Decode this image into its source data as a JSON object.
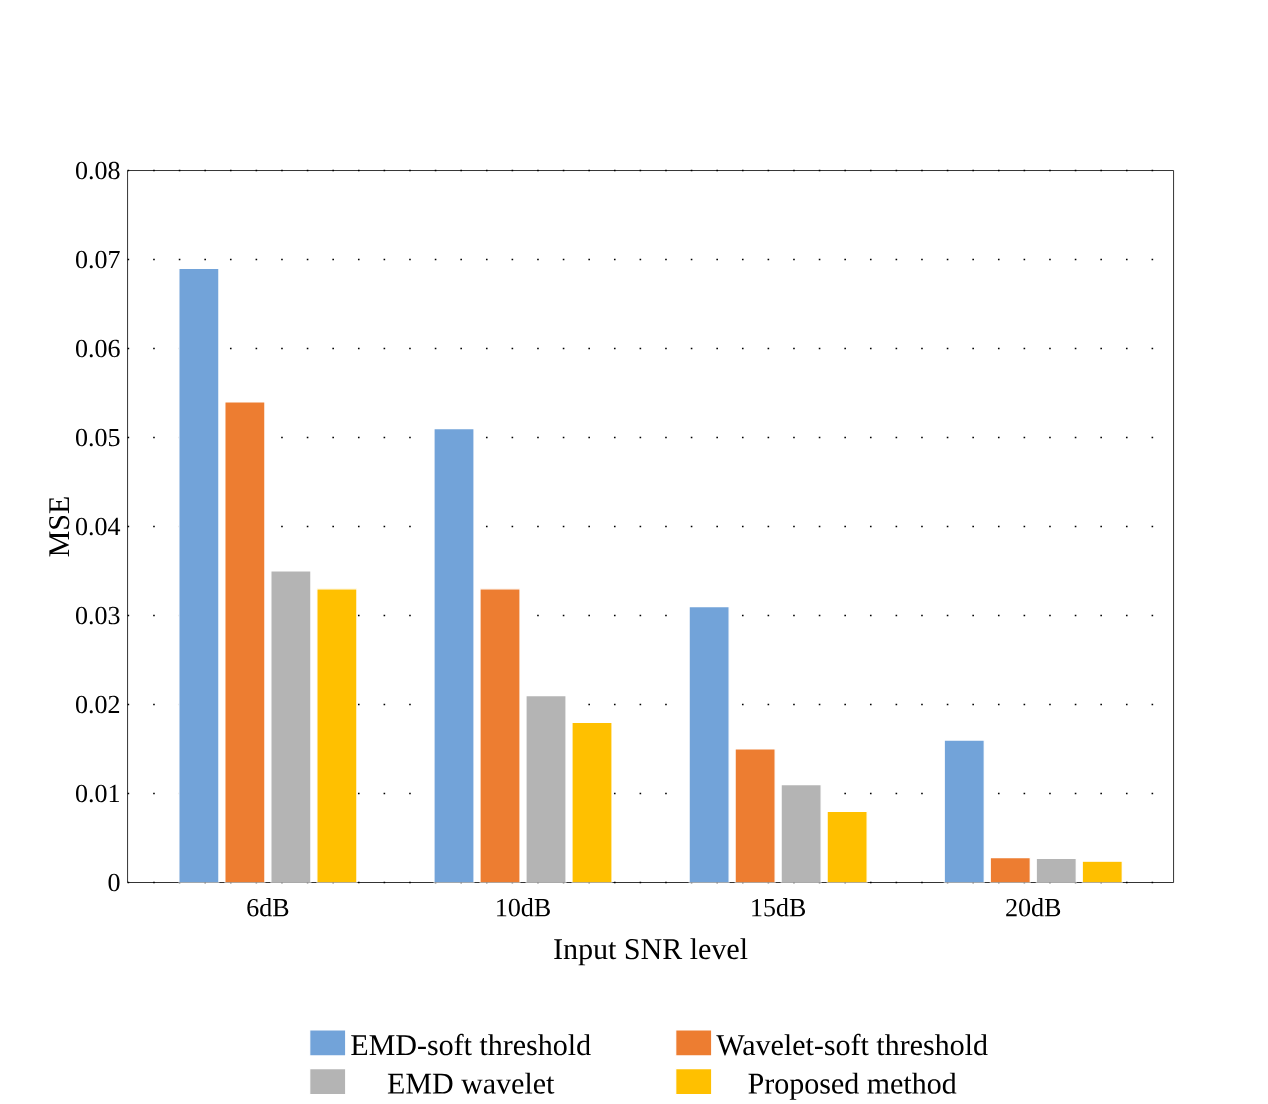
{
  "chart_data": {
    "type": "bar",
    "xlabel": "Input SNR level",
    "ylabel": "MSE",
    "categories": [
      "6dB",
      "10dB",
      "15dB",
      "20dB"
    ],
    "series": [
      {
        "name": "EMD-soft threshold",
        "color": "#72a3d9",
        "values": [
          0.069,
          0.051,
          0.031,
          0.016
        ]
      },
      {
        "name": "Wavelet-soft threshold",
        "color": "#ed7d31",
        "values": [
          0.054,
          0.033,
          0.015,
          0.0028
        ]
      },
      {
        "name": "EMD wavelet",
        "color": "#b4b4b4",
        "values": [
          0.035,
          0.021,
          0.011,
          0.0027
        ]
      },
      {
        "name": "Proposed method",
        "color": "#ffc000",
        "values": [
          0.033,
          0.018,
          0.008,
          0.0024
        ]
      }
    ],
    "ylim": [
      0,
      0.08
    ],
    "yticks": [
      0,
      0.01,
      0.02,
      0.03,
      0.04,
      0.05,
      0.06,
      0.07,
      0.08
    ],
    "grid": "y",
    "legend": "bottom"
  }
}
